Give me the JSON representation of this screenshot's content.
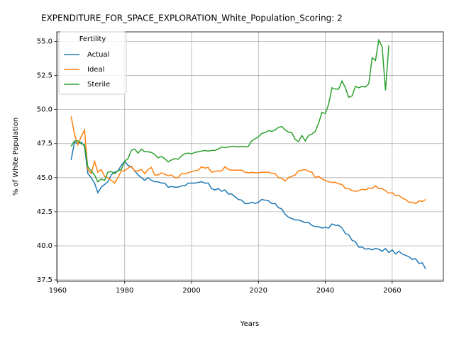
{
  "chart_data": {
    "type": "line",
    "title": "EXPENDITURE_FOR_SPACE_EXPLORATION_White_Population_Scoring: 2",
    "x_label": "Years",
    "y_label": "% of White Population",
    "legend_title": "Fertility",
    "legend": "upper left",
    "grid": true,
    "x": [
      1964,
      1965,
      1966,
      1967,
      1968,
      1969,
      1970,
      1971,
      1972,
      1973,
      1974,
      1975,
      1976,
      1977,
      1978,
      1979,
      1980,
      1981,
      1982,
      1983,
      1984,
      1985,
      1986,
      1987,
      1988,
      1989,
      1990,
      1991,
      1992,
      1993,
      1994,
      1995,
      1996,
      1997,
      1998,
      1999,
      2000,
      2001,
      2002,
      2003,
      2004,
      2005,
      2006,
      2007,
      2008,
      2009,
      2010,
      2011,
      2012,
      2013,
      2014,
      2015,
      2016,
      2017,
      2018,
      2019,
      2020,
      2021,
      2022,
      2023,
      2024,
      2025,
      2026,
      2027,
      2028,
      2029,
      2030,
      2031,
      2032,
      2033,
      2034,
      2035,
      2036,
      2037,
      2038,
      2039,
      2040,
      2041,
      2042,
      2043,
      2044,
      2045,
      2046,
      2047,
      2048,
      2049,
      2050,
      2051,
      2052,
      2053,
      2054,
      2055,
      2056,
      2057,
      2058,
      2059,
      2060,
      2061,
      2062,
      2063,
      2064,
      2065,
      2066,
      2067,
      2068,
      2069,
      2070
    ],
    "series": [
      {
        "name": "Actual",
        "color": "#1f77b4",
        "values": [
          46.3,
          47.6,
          47.5,
          47.6,
          47.3,
          45.3,
          45.0,
          44.6,
          43.9,
          44.3,
          44.5,
          44.7,
          45.2,
          45.4,
          45.5,
          45.9,
          46.2,
          45.9,
          45.8,
          45.5,
          45.2,
          45.0,
          44.8,
          45.0,
          44.8,
          44.7,
          44.7,
          44.6,
          44.6,
          44.3,
          44.35,
          44.3,
          44.3,
          44.4,
          44.4,
          44.6,
          44.6,
          44.6,
          44.65,
          44.7,
          44.6,
          44.6,
          44.2,
          44.1,
          44.2,
          44.0,
          44.1,
          43.8,
          43.8,
          43.6,
          43.4,
          43.35,
          43.1,
          43.1,
          43.2,
          43.1,
          43.2,
          43.4,
          43.35,
          43.3,
          43.1,
          43.1,
          42.8,
          42.7,
          42.3,
          42.1,
          42.0,
          41.9,
          41.9,
          41.8,
          41.7,
          41.7,
          41.5,
          41.4,
          41.4,
          41.3,
          41.35,
          41.3,
          41.6,
          41.5,
          41.5,
          41.3,
          40.9,
          40.8,
          40.4,
          40.3,
          39.9,
          39.9,
          39.75,
          39.8,
          39.7,
          39.8,
          39.75,
          39.6,
          39.8,
          39.5,
          39.7,
          39.4,
          39.6,
          39.4,
          39.3,
          39.2,
          39.0,
          39.05,
          38.7,
          38.75,
          38.3
        ]
      },
      {
        "name": "Ideal",
        "color": "#ff7f0e",
        "values": [
          49.5,
          48.2,
          47.4,
          48.0,
          48.5,
          45.6,
          45.3,
          46.2,
          45.4,
          45.6,
          45.1,
          45.0,
          44.8,
          44.6,
          45.0,
          45.5,
          45.5,
          45.7,
          45.85,
          45.5,
          45.5,
          45.6,
          45.3,
          45.6,
          45.75,
          45.2,
          45.2,
          45.35,
          45.25,
          45.15,
          45.2,
          45.0,
          45.0,
          45.3,
          45.3,
          45.35,
          45.45,
          45.5,
          45.55,
          45.8,
          45.7,
          45.75,
          45.4,
          45.45,
          45.5,
          45.5,
          45.8,
          45.6,
          45.55,
          45.55,
          45.55,
          45.55,
          45.4,
          45.35,
          45.4,
          45.35,
          45.35,
          45.4,
          45.4,
          45.4,
          45.3,
          45.3,
          45.0,
          44.95,
          44.75,
          45.0,
          45.1,
          45.2,
          45.5,
          45.55,
          45.6,
          45.45,
          45.4,
          45.0,
          45.1,
          44.9,
          44.8,
          44.7,
          44.65,
          44.65,
          44.55,
          44.5,
          44.2,
          44.2,
          44.05,
          44.0,
          44.05,
          44.15,
          44.1,
          44.25,
          44.2,
          44.4,
          44.2,
          44.2,
          44.05,
          43.85,
          43.9,
          43.7,
          43.7,
          43.5,
          43.4,
          43.2,
          43.2,
          43.1,
          43.3,
          43.25,
          43.4
        ]
      },
      {
        "name": "Sterile",
        "color": "#2ca02c",
        "values": [
          47.3,
          47.7,
          47.7,
          47.5,
          47.4,
          45.8,
          45.5,
          45.2,
          44.7,
          44.9,
          44.8,
          45.4,
          45.45,
          45.3,
          45.5,
          45.6,
          46.2,
          46.4,
          47.0,
          47.1,
          46.8,
          47.1,
          46.9,
          46.9,
          46.85,
          46.7,
          46.45,
          46.55,
          46.4,
          46.15,
          46.3,
          46.4,
          46.35,
          46.6,
          46.75,
          46.8,
          46.75,
          46.85,
          46.9,
          46.95,
          47.0,
          46.95,
          47.0,
          47.0,
          47.1,
          47.25,
          47.2,
          47.25,
          47.3,
          47.3,
          47.25,
          47.3,
          47.25,
          47.3,
          47.7,
          47.85,
          48.0,
          48.25,
          48.3,
          48.45,
          48.4,
          48.5,
          48.7,
          48.75,
          48.5,
          48.35,
          48.3,
          47.8,
          47.65,
          48.1,
          47.7,
          48.1,
          48.2,
          48.4,
          49.0,
          49.8,
          49.7,
          50.4,
          51.6,
          51.5,
          51.5,
          52.1,
          51.6,
          50.9,
          51.0,
          51.7,
          51.6,
          51.7,
          51.65,
          51.9,
          53.8,
          53.6,
          55.1,
          54.6,
          51.4,
          54.7,
          null,
          null,
          null,
          null,
          null,
          null,
          null,
          null,
          null,
          null,
          null
        ]
      }
    ],
    "xlim": [
      1959.7,
      2075.3
    ],
    "xticks": [
      1960,
      1980,
      2000,
      2020,
      2040,
      2060
    ],
    "ylim": [
      37.4,
      55.7
    ],
    "yticks": [
      37.5,
      {
        "value": 40,
        "label": "40.0"
      },
      42.5,
      {
        "value": 45,
        "label": "45.0"
      },
      47.5,
      {
        "value": 50,
        "label": "50.0"
      },
      52.5,
      {
        "value": 55,
        "label": "55.0"
      }
    ]
  }
}
